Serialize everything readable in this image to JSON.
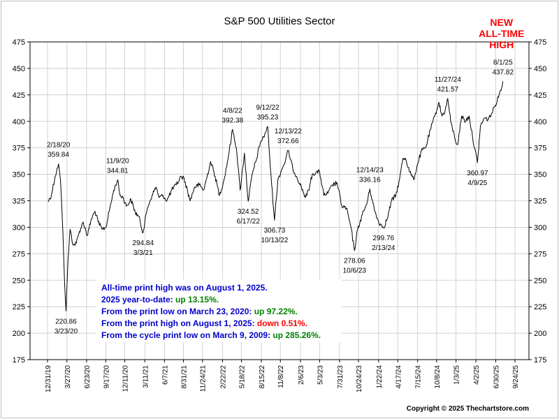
{
  "chart_data": {
    "type": "line",
    "title": "S&P 500 Utilities Sector",
    "ylim": [
      175,
      475
    ],
    "yticks": [
      175,
      200,
      225,
      250,
      275,
      300,
      325,
      350,
      375,
      400,
      425,
      450,
      475
    ],
    "xticks": [
      "12/31/19",
      "3/27/20",
      "6/23/20",
      "9/17/20",
      "12/11/20",
      "3/11/21",
      "6/7/21",
      "8/31/21",
      "11/24/21",
      "2/22/22",
      "5/18/22",
      "8/15/22",
      "11/8/22",
      "2/6/23",
      "5/3/23",
      "7/31/23",
      "10/24/23",
      "1/22/24",
      "4/17/24",
      "7/15/24",
      "10/8/24",
      "1/3/25",
      "4/2/25",
      "6/30/25",
      "9/24/25"
    ],
    "grid": true,
    "series": [
      {
        "color": "#000000",
        "points": [
          [
            "1/2/20",
            324
          ],
          [
            "1/17/20",
            330
          ],
          [
            "2/3/20",
            348
          ],
          [
            "2/18/20",
            359.84
          ],
          [
            "2/27/20",
            345
          ],
          [
            "3/9/20",
            296
          ],
          [
            "3/16/20",
            250
          ],
          [
            "3/23/20",
            220.86
          ],
          [
            "4/1/20",
            270
          ],
          [
            "4/10/20",
            298
          ],
          [
            "4/24/20",
            283
          ],
          [
            "5/8/20",
            285
          ],
          [
            "5/22/20",
            296
          ],
          [
            "6/8/20",
            305
          ],
          [
            "6/26/20",
            292
          ],
          [
            "7/15/20",
            308
          ],
          [
            "7/31/20",
            315
          ],
          [
            "8/14/20",
            305
          ],
          [
            "8/31/20",
            298
          ],
          [
            "9/18/20",
            300
          ],
          [
            "10/5/20",
            318
          ],
          [
            "10/23/20",
            335
          ],
          [
            "11/9/20",
            344.81
          ],
          [
            "11/20/20",
            330
          ],
          [
            "12/4/20",
            328
          ],
          [
            "12/18/20",
            320
          ],
          [
            "1/8/21",
            326
          ],
          [
            "1/27/21",
            314
          ],
          [
            "2/12/21",
            310
          ],
          [
            "3/3/21",
            294.84
          ],
          [
            "3/22/21",
            318
          ],
          [
            "4/12/21",
            330
          ],
          [
            "4/30/21",
            338
          ],
          [
            "5/14/21",
            328
          ],
          [
            "6/1/21",
            330
          ],
          [
            "6/18/21",
            325
          ],
          [
            "7/9/21",
            335
          ],
          [
            "7/30/21",
            340
          ],
          [
            "8/20/21",
            348
          ],
          [
            "9/3/21",
            346
          ],
          [
            "9/30/21",
            325
          ],
          [
            "10/20/21",
            338
          ],
          [
            "11/10/21",
            340
          ],
          [
            "11/30/21",
            335
          ],
          [
            "12/31/21",
            362
          ],
          [
            "1/20/22",
            348
          ],
          [
            "2/8/22",
            330
          ],
          [
            "3/1/22",
            345
          ],
          [
            "3/21/22",
            368
          ],
          [
            "4/8/22",
            392.38
          ],
          [
            "4/25/22",
            375
          ],
          [
            "5/12/22",
            335
          ],
          [
            "5/31/22",
            370
          ],
          [
            "6/17/22",
            324.52
          ],
          [
            "7/5/22",
            350
          ],
          [
            "7/25/22",
            365
          ],
          [
            "8/10/22",
            380
          ],
          [
            "8/25/22",
            385
          ],
          [
            "9/12/22",
            395.23
          ],
          [
            "9/30/22",
            340
          ],
          [
            "10/13/22",
            306.73
          ],
          [
            "10/28/22",
            345
          ],
          [
            "11/15/22",
            355
          ],
          [
            "12/1/22",
            363
          ],
          [
            "12/13/22",
            372.66
          ],
          [
            "1/3/23",
            355
          ],
          [
            "1/20/23",
            348
          ],
          [
            "2/10/23",
            338
          ],
          [
            "3/1/23",
            328
          ],
          [
            "3/15/23",
            335
          ],
          [
            "3/31/23",
            350
          ],
          [
            "4/17/23",
            352
          ],
          [
            "5/3/23",
            352
          ],
          [
            "5/22/23",
            330
          ],
          [
            "6/9/23",
            332
          ],
          [
            "6/30/23",
            340
          ],
          [
            "7/20/23",
            342
          ],
          [
            "8/10/23",
            320
          ],
          [
            "8/31/23",
            318
          ],
          [
            "9/20/23",
            300
          ],
          [
            "10/6/23",
            278.06
          ],
          [
            "10/20/23",
            298
          ],
          [
            "11/10/23",
            312
          ],
          [
            "11/30/23",
            322
          ],
          [
            "12/14/23",
            336.16
          ],
          [
            "1/5/24",
            315
          ],
          [
            "1/22/24",
            305
          ],
          [
            "2/13/24",
            299.76
          ],
          [
            "3/1/24",
            308
          ],
          [
            "3/20/24",
            325
          ],
          [
            "4/8/24",
            330
          ],
          [
            "4/25/24",
            345
          ],
          [
            "5/10/24",
            365
          ],
          [
            "5/22/24",
            365
          ],
          [
            "6/10/24",
            352
          ],
          [
            "6/27/24",
            345
          ],
          [
            "7/15/24",
            360
          ],
          [
            "8/1/24",
            372
          ],
          [
            "8/20/24",
            375
          ],
          [
            "9/10/24",
            392
          ],
          [
            "9/30/24",
            405
          ],
          [
            "10/18/24",
            418
          ],
          [
            "11/1/24",
            405
          ],
          [
            "11/15/24",
            410
          ],
          [
            "11/27/24",
            421.57
          ],
          [
            "12/10/24",
            400
          ],
          [
            "12/31/24",
            382
          ],
          [
            "1/10/25",
            378
          ],
          [
            "1/28/25",
            405
          ],
          [
            "2/14/25",
            400
          ],
          [
            "3/3/25",
            405
          ],
          [
            "3/18/25",
            385
          ],
          [
            "4/9/25",
            360.97
          ],
          [
            "4/22/25",
            395
          ],
          [
            "5/9/25",
            403
          ],
          [
            "5/28/25",
            402
          ],
          [
            "6/13/25",
            408
          ],
          [
            "6/27/25",
            415
          ],
          [
            "7/15/25",
            425
          ],
          [
            "8/1/25",
            437.82
          ]
        ]
      }
    ],
    "annotations": [
      {
        "date": "2/18/20",
        "value": 359.84,
        "label_date": "2/18/20",
        "label_value": "359.84",
        "position": "above"
      },
      {
        "date": "3/23/20",
        "value": 220.86,
        "label_date": "3/23/20",
        "label_value": "220.86",
        "position": "below"
      },
      {
        "date": "11/9/20",
        "value": 344.81,
        "label_date": "11/9/20",
        "label_value": "344.81",
        "position": "above"
      },
      {
        "date": "3/3/21",
        "value": 294.84,
        "label_date": "3/3/21",
        "label_value": "294.84",
        "position": "below"
      },
      {
        "date": "4/8/22",
        "value": 392.38,
        "label_date": "4/8/22",
        "label_value": "392.38",
        "position": "above"
      },
      {
        "date": "6/17/22",
        "value": 324.52,
        "label_date": "6/17/22",
        "label_value": "324.52",
        "position": "below"
      },
      {
        "date": "9/12/22",
        "value": 395.23,
        "label_date": "9/12/22",
        "label_value": "395.23",
        "position": "above"
      },
      {
        "date": "10/13/22",
        "value": 306.73,
        "label_date": "10/13/22",
        "label_value": "306.73",
        "position": "below"
      },
      {
        "date": "12/13/22",
        "value": 372.66,
        "label_date": "12/13/22",
        "label_value": "372.66",
        "position": "above"
      },
      {
        "date": "10/6/23",
        "value": 278.06,
        "label_date": "10/6/23",
        "label_value": "278.06",
        "position": "below"
      },
      {
        "date": "12/14/23",
        "value": 336.16,
        "label_date": "12/14/23",
        "label_value": "336.16",
        "position": "above"
      },
      {
        "date": "2/13/24",
        "value": 299.76,
        "label_date": "2/13/24",
        "label_value": "299.76",
        "position": "below"
      },
      {
        "date": "11/27/24",
        "value": 421.57,
        "label_date": "11/27/24",
        "label_value": "421.57",
        "position": "above"
      },
      {
        "date": "4/9/25",
        "value": 360.97,
        "label_date": "4/9/25",
        "label_value": "360.97",
        "position": "below"
      },
      {
        "date": "8/1/25",
        "value": 437.82,
        "label_date": "8/1/25",
        "label_value": "437.82",
        "position": "above"
      }
    ],
    "callout": {
      "lines": [
        "NEW",
        "ALL-TIME",
        "HIGH"
      ],
      "color": "#ff0000"
    },
    "notes": [
      [
        {
          "text": "All-time print high was on August 1, 2025.",
          "color": "#0000cc"
        }
      ],
      [
        {
          "text": "2025 year-to-date:  ",
          "color": "#0000cc"
        },
        {
          "text": "up 13.15%.",
          "color": "#008000"
        }
      ],
      [
        {
          "text": "From the print low on March 23, 2020:  ",
          "color": "#0000cc"
        },
        {
          "text": "up 97.22%.",
          "color": "#008000"
        }
      ],
      [
        {
          "text": "From the print high on August 1, 2025:  ",
          "color": "#0000cc"
        },
        {
          "text": "down 0.51%.",
          "color": "#ff0000"
        }
      ],
      [
        {
          "text": "From the cycle print low on March 9, 2009:  ",
          "color": "#0000cc"
        },
        {
          "text": "up 285.26%.",
          "color": "#008000"
        }
      ]
    ],
    "copyright": "Copyright © 2025 Thechartstore.com"
  }
}
